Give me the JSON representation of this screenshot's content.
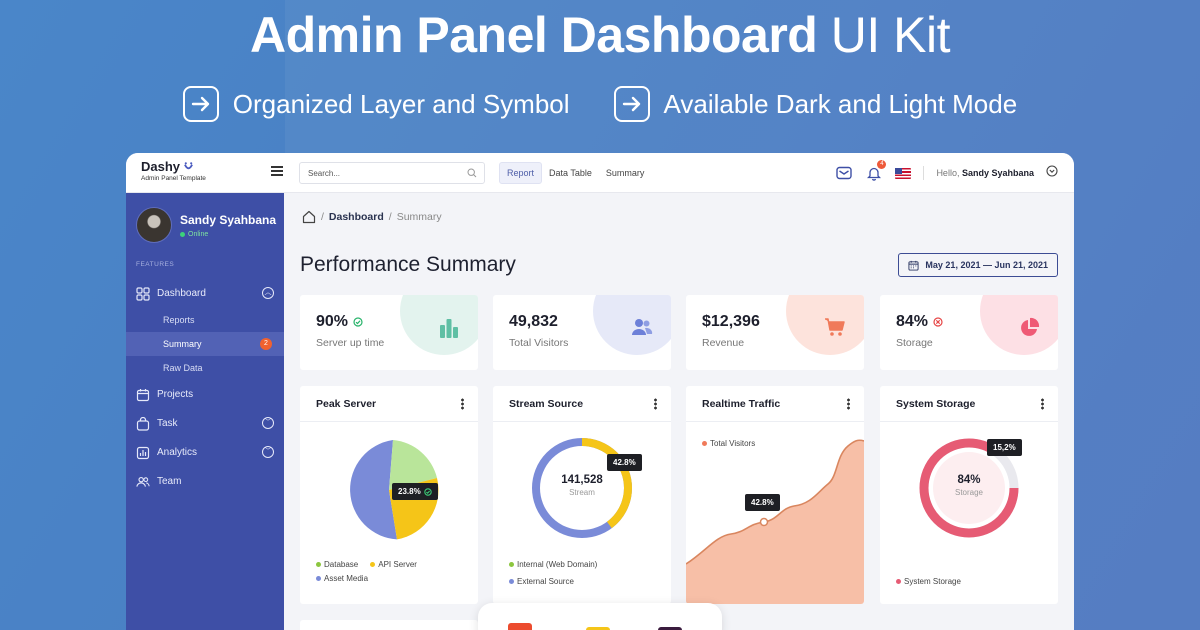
{
  "hero": {
    "title_bold": "Admin Panel Dashboard",
    "title_light": "UI Kit",
    "features": [
      "Organized Layer and Symbol",
      "Available Dark and Light Mode"
    ]
  },
  "topbar": {
    "logo": "Dashy",
    "logo_sub": "Admin Panel Template",
    "search_placeholder": "Search...",
    "tabs": [
      "Report",
      "Data Table",
      "Summary"
    ],
    "notification_count": "4",
    "hello": "Hello,",
    "user_name": "Sandy Syahbana"
  },
  "sidebar": {
    "user_name": "Sandy Syahbana",
    "status": "Online",
    "section_label": "FEATURES",
    "items": {
      "dashboard": "Dashboard",
      "reports": "Reports",
      "summary": "Summary",
      "summary_badge": "2",
      "raw_data": "Raw Data",
      "projects": "Projects",
      "task": "Task",
      "analytics": "Analytics",
      "team": "Team"
    }
  },
  "main": {
    "breadcrumb": [
      "Dashboard",
      "Summary"
    ],
    "title": "Performance Summary",
    "date_range": "May 21, 2021 — Jun 21, 2021",
    "stats": [
      {
        "value": "90%",
        "label": "Server up time",
        "color": "#5fbfa4"
      },
      {
        "value": "49,832",
        "label": "Total Visitors",
        "color": "#6d80d8"
      },
      {
        "value": "$12,396",
        "label": "Revenue",
        "color": "#f07a5a"
      },
      {
        "value": "84%",
        "label": "Storage",
        "color": "#ef5a75"
      }
    ],
    "cards": {
      "peak_server": {
        "title": "Peak Server",
        "tooltip": "23.8%",
        "legend": [
          "Database",
          "API Server",
          "Asset Media"
        ]
      },
      "stream_source": {
        "title": "Stream Source",
        "center_value": "141,528",
        "center_label": "Stream",
        "tooltip": "42.8%",
        "legend": [
          "Internal (Web Domain)",
          "External Source"
        ]
      },
      "realtime_traffic": {
        "title": "Realtime Traffic",
        "legend": "Total Visitors",
        "tooltip": "42.8%"
      },
      "system_storage": {
        "title": "System Storage",
        "center_value": "84%",
        "center_label": "Storage",
        "tooltip": "15,2%",
        "legend": "System Storage"
      }
    }
  },
  "colors": {
    "primary": "#3e4fa6",
    "green": "#8cc63f",
    "yellow": "#f5c518",
    "purple_blue": "#7a8bd8",
    "lime": "#b9e59a",
    "salmon": "#f7bfa7",
    "pink_red": "#e65b74"
  }
}
